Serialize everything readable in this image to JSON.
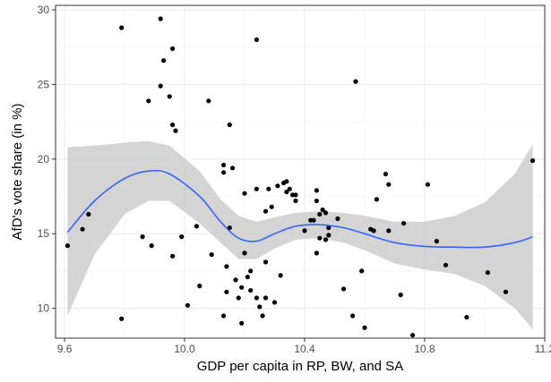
{
  "chart_data": {
    "type": "scatter",
    "title": "",
    "xlabel": "GDP per capita in RP, BW, and SA",
    "ylabel": "AfD's vote share (in %)",
    "xlim": [
      9.57,
      11.2
    ],
    "ylim": [
      8.0,
      30.3
    ],
    "x_ticks": [
      9.6,
      10.0,
      10.4,
      10.8,
      11.2
    ],
    "y_ticks": [
      10,
      15,
      20,
      25,
      30
    ],
    "x_tick_labels": [
      "9.6",
      "10.0",
      "10.4",
      "10.8",
      "11.2"
    ],
    "y_tick_labels": [
      "10",
      "15",
      "20",
      "25",
      "30"
    ],
    "grid": true,
    "legend": "none",
    "colors": {
      "point": "#000000",
      "smooth_line": "#3366ff",
      "confidence_band": "#cccccc",
      "panel_background": "#ffffff",
      "grid_major": "#ebebeb",
      "grid_minor": "#f5f5f5",
      "panel_border": "#333333"
    },
    "points": [
      {
        "x": 9.61,
        "y": 14.2
      },
      {
        "x": 9.66,
        "y": 15.3
      },
      {
        "x": 9.68,
        "y": 16.3
      },
      {
        "x": 9.79,
        "y": 28.8
      },
      {
        "x": 9.79,
        "y": 9.3
      },
      {
        "x": 9.86,
        "y": 14.8
      },
      {
        "x": 9.88,
        "y": 23.9
      },
      {
        "x": 9.89,
        "y": 14.2
      },
      {
        "x": 9.92,
        "y": 29.4
      },
      {
        "x": 9.92,
        "y": 24.9
      },
      {
        "x": 9.93,
        "y": 26.6
      },
      {
        "x": 9.95,
        "y": 24.2
      },
      {
        "x": 9.96,
        "y": 27.4
      },
      {
        "x": 9.96,
        "y": 22.3
      },
      {
        "x": 9.97,
        "y": 21.9
      },
      {
        "x": 9.96,
        "y": 13.5
      },
      {
        "x": 9.99,
        "y": 14.8
      },
      {
        "x": 10.01,
        "y": 10.2
      },
      {
        "x": 10.04,
        "y": 15.5
      },
      {
        "x": 10.05,
        "y": 11.5
      },
      {
        "x": 10.08,
        "y": 23.9
      },
      {
        "x": 10.09,
        "y": 13.6
      },
      {
        "x": 10.13,
        "y": 19.6
      },
      {
        "x": 10.13,
        "y": 19.1
      },
      {
        "x": 10.13,
        "y": 9.5
      },
      {
        "x": 10.14,
        "y": 12.8
      },
      {
        "x": 10.14,
        "y": 11.1
      },
      {
        "x": 10.15,
        "y": 22.3
      },
      {
        "x": 10.15,
        "y": 15.4
      },
      {
        "x": 10.16,
        "y": 19.4
      },
      {
        "x": 10.17,
        "y": 11.9
      },
      {
        "x": 10.18,
        "y": 10.7
      },
      {
        "x": 10.19,
        "y": 9.0
      },
      {
        "x": 10.19,
        "y": 11.4
      },
      {
        "x": 10.2,
        "y": 17.7
      },
      {
        "x": 10.2,
        "y": 13.7
      },
      {
        "x": 10.21,
        "y": 12.1
      },
      {
        "x": 10.22,
        "y": 11.2
      },
      {
        "x": 10.22,
        "y": 12.5
      },
      {
        "x": 10.24,
        "y": 28.0
      },
      {
        "x": 10.24,
        "y": 18.0
      },
      {
        "x": 10.24,
        "y": 10.7
      },
      {
        "x": 10.25,
        "y": 10.1
      },
      {
        "x": 10.26,
        "y": 9.5
      },
      {
        "x": 10.27,
        "y": 16.5
      },
      {
        "x": 10.27,
        "y": 13.1
      },
      {
        "x": 10.27,
        "y": 10.7
      },
      {
        "x": 10.28,
        "y": 18.0
      },
      {
        "x": 10.29,
        "y": 16.8
      },
      {
        "x": 10.3,
        "y": 10.4
      },
      {
        "x": 10.31,
        "y": 18.2
      },
      {
        "x": 10.32,
        "y": 12.2
      },
      {
        "x": 10.33,
        "y": 18.4
      },
      {
        "x": 10.34,
        "y": 17.8
      },
      {
        "x": 10.34,
        "y": 18.5
      },
      {
        "x": 10.35,
        "y": 18.0
      },
      {
        "x": 10.36,
        "y": 17.6
      },
      {
        "x": 10.37,
        "y": 17.6
      },
      {
        "x": 10.37,
        "y": 17.2
      },
      {
        "x": 10.4,
        "y": 15.2
      },
      {
        "x": 10.42,
        "y": 15.9
      },
      {
        "x": 10.43,
        "y": 15.9
      },
      {
        "x": 10.44,
        "y": 13.7
      },
      {
        "x": 10.44,
        "y": 17.2
      },
      {
        "x": 10.44,
        "y": 17.9
      },
      {
        "x": 10.45,
        "y": 16.3
      },
      {
        "x": 10.45,
        "y": 14.7
      },
      {
        "x": 10.46,
        "y": 16.6
      },
      {
        "x": 10.47,
        "y": 16.4
      },
      {
        "x": 10.47,
        "y": 14.6
      },
      {
        "x": 10.48,
        "y": 15.4
      },
      {
        "x": 10.48,
        "y": 14.9
      },
      {
        "x": 10.51,
        "y": 16.0
      },
      {
        "x": 10.53,
        "y": 11.3
      },
      {
        "x": 10.56,
        "y": 9.5
      },
      {
        "x": 10.57,
        "y": 25.2
      },
      {
        "x": 10.59,
        "y": 12.5
      },
      {
        "x": 10.6,
        "y": 8.7
      },
      {
        "x": 10.62,
        "y": 15.3
      },
      {
        "x": 10.63,
        "y": 15.2
      },
      {
        "x": 10.64,
        "y": 17.3
      },
      {
        "x": 10.67,
        "y": 19.0
      },
      {
        "x": 10.68,
        "y": 18.3
      },
      {
        "x": 10.68,
        "y": 15.2
      },
      {
        "x": 10.72,
        "y": 10.9
      },
      {
        "x": 10.73,
        "y": 15.7
      },
      {
        "x": 10.76,
        "y": 8.2
      },
      {
        "x": 10.81,
        "y": 18.3
      },
      {
        "x": 10.84,
        "y": 14.5
      },
      {
        "x": 10.87,
        "y": 12.9
      },
      {
        "x": 10.94,
        "y": 9.4
      },
      {
        "x": 11.01,
        "y": 12.4
      },
      {
        "x": 11.07,
        "y": 11.1
      },
      {
        "x": 11.16,
        "y": 19.9
      }
    ],
    "smooth": {
      "method": "loess",
      "x": [
        9.61,
        9.7,
        9.8,
        9.88,
        9.95,
        10.05,
        10.12,
        10.18,
        10.24,
        10.3,
        10.37,
        10.45,
        10.53,
        10.6,
        10.7,
        10.8,
        10.9,
        11.0,
        11.1,
        11.16
      ],
      "y": [
        15.1,
        17.2,
        18.7,
        19.2,
        19.0,
        17.5,
        15.8,
        14.7,
        14.5,
        15.0,
        15.5,
        15.6,
        15.4,
        15.0,
        14.4,
        14.15,
        14.1,
        14.1,
        14.4,
        14.8
      ],
      "lower": [
        9.5,
        13.6,
        16.3,
        17.2,
        17.2,
        15.7,
        14.4,
        13.3,
        13.3,
        14.0,
        14.6,
        14.7,
        14.4,
        13.9,
        13.0,
        12.6,
        12.3,
        11.5,
        10.0,
        8.6
      ],
      "upper": [
        20.8,
        20.9,
        21.1,
        21.2,
        20.9,
        19.2,
        17.3,
        16.2,
        15.8,
        16.1,
        16.4,
        16.5,
        16.4,
        16.2,
        15.8,
        15.8,
        16.2,
        17.1,
        19.0,
        21.0
      ]
    }
  }
}
